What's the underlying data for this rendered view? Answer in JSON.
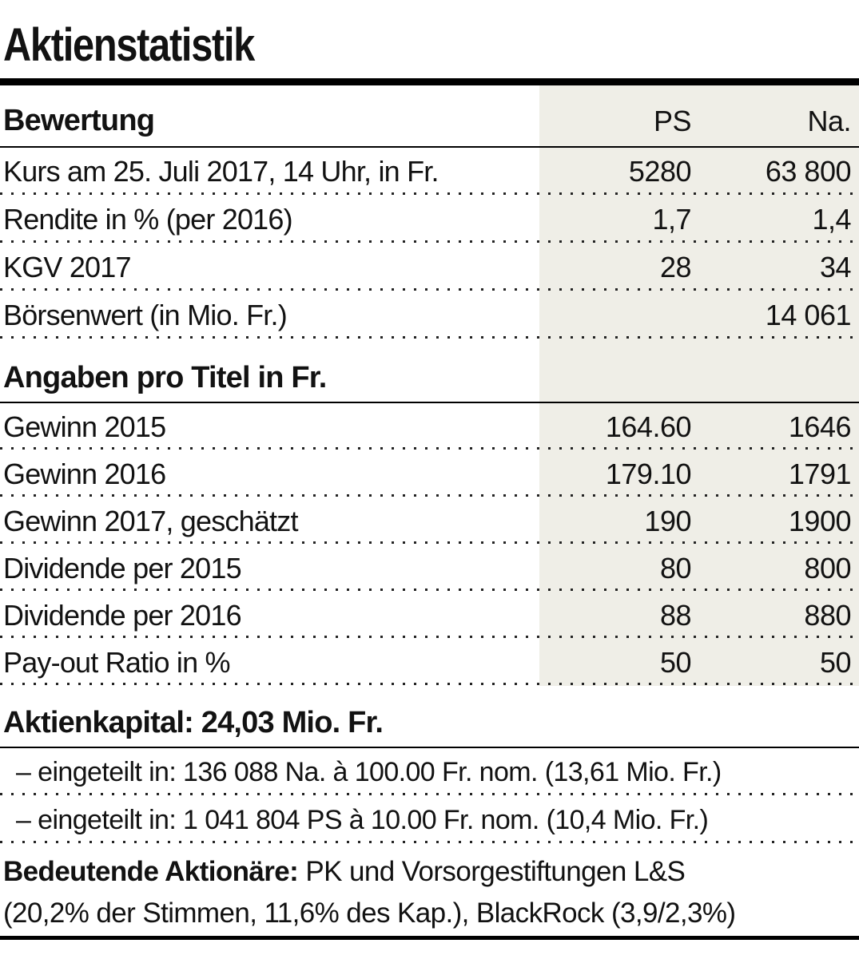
{
  "title": "Aktienstatistik",
  "colors": {
    "shade": "#efeee7",
    "rule": "#000000",
    "text": "#121212"
  },
  "table": {
    "header": {
      "label": "Bewertung",
      "col_ps": "PS",
      "col_na": "Na."
    },
    "rows_bewertung": [
      {
        "label": "Kurs am 25. Juli 2017, 14 Uhr, in Fr.",
        "ps": "5280",
        "na": "63 800"
      },
      {
        "label": "Rendite in % (per 2016)",
        "ps": "1,7",
        "na": "1,4"
      },
      {
        "label": "KGV 2017",
        "ps": "28",
        "na": "34"
      },
      {
        "label": "Börsenwert (in Mio. Fr.)",
        "ps": "",
        "na": "14 061"
      }
    ],
    "section2_header": "Angaben pro Titel in Fr.",
    "rows_titel": [
      {
        "label": "Gewinn 2015",
        "ps": "164.60",
        "na": "1646"
      },
      {
        "label": "Gewinn 2016",
        "ps": "179.10",
        "na": "1791"
      },
      {
        "label": "Gewinn 2017, geschätzt",
        "ps": "190",
        "na": "1900"
      },
      {
        "label": "Dividende per 2015",
        "ps": "80",
        "na": "800"
      },
      {
        "label": "Dividende per 2016",
        "ps": "88",
        "na": "880"
      },
      {
        "label": "Pay-out Ratio in %",
        "ps": "50",
        "na": "50"
      }
    ]
  },
  "aktienkapital": {
    "heading": "Aktienkapital: 24,03 Mio. Fr.",
    "line1": "– eingeteilt in: 136 088 Na. à 100.00 Fr. nom. (13,61 Mio. Fr.)",
    "line2": "– eingeteilt in: 1 041 804 PS à 10.00 Fr. nom. (10,4 Mio. Fr.)"
  },
  "shareholders": {
    "lead": "Bedeutende Aktionäre:",
    "line1_rest": " PK und Vorsorgestiftungen L&S",
    "line2": "(20,2% der Stimmen, 11,6% des Kap.), BlackRock (3,9/2,3%)"
  }
}
